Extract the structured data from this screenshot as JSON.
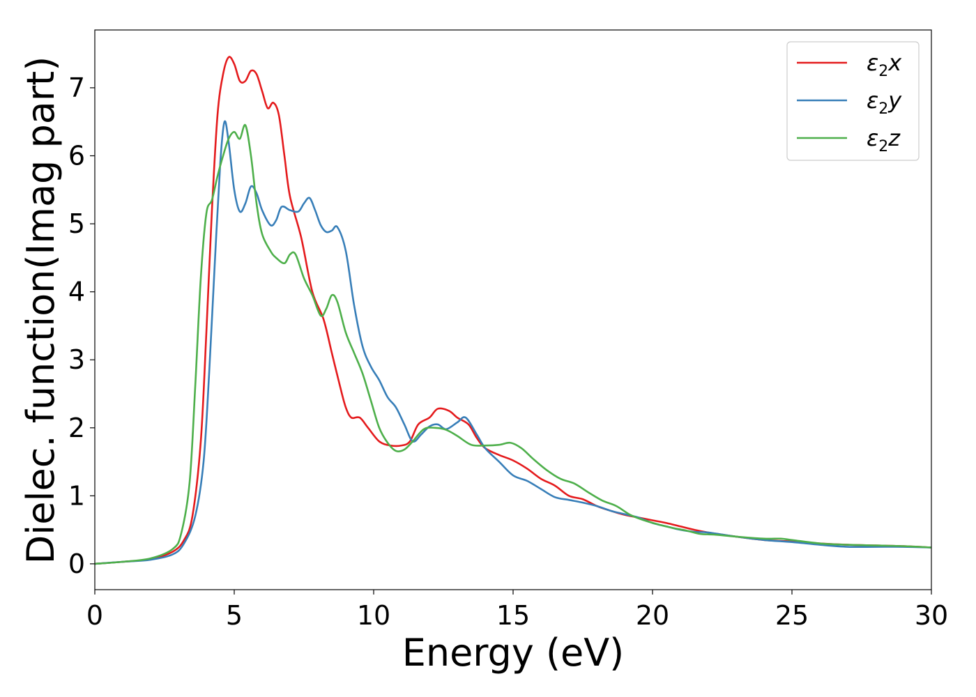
{
  "chart_data": {
    "type": "line",
    "title": "",
    "xlabel": "Energy (eV)",
    "ylabel": "Dielec. function(Imag part)",
    "xlim": [
      0,
      30
    ],
    "ylim": [
      -0.38,
      7.85
    ],
    "xticks": [
      0,
      5,
      10,
      15,
      20,
      25,
      30
    ],
    "yticks": [
      0,
      1,
      2,
      3,
      4,
      5,
      6,
      7
    ],
    "grid": false,
    "legend_position": "top-right",
    "series": [
      {
        "name": "ε2x",
        "legend": {
          "base": "ε",
          "sub": "2",
          "suffix": "x"
        },
        "color": "#e41a1c",
        "points": [
          [
            0,
            0
          ],
          [
            1,
            0.03
          ],
          [
            2,
            0.07
          ],
          [
            2.8,
            0.18
          ],
          [
            3.2,
            0.35
          ],
          [
            3.5,
            0.7
          ],
          [
            3.8,
            1.8
          ],
          [
            4.0,
            3.4
          ],
          [
            4.2,
            5.2
          ],
          [
            4.4,
            6.6
          ],
          [
            4.6,
            7.2
          ],
          [
            4.8,
            7.45
          ],
          [
            5.0,
            7.35
          ],
          [
            5.2,
            7.1
          ],
          [
            5.4,
            7.1
          ],
          [
            5.6,
            7.25
          ],
          [
            5.8,
            7.2
          ],
          [
            6.0,
            6.95
          ],
          [
            6.2,
            6.7
          ],
          [
            6.4,
            6.78
          ],
          [
            6.6,
            6.6
          ],
          [
            6.8,
            6.0
          ],
          [
            7.0,
            5.4
          ],
          [
            7.4,
            4.8
          ],
          [
            7.8,
            4.0
          ],
          [
            8.2,
            3.6
          ],
          [
            8.5,
            3.1
          ],
          [
            8.8,
            2.6
          ],
          [
            9.0,
            2.3
          ],
          [
            9.2,
            2.15
          ],
          [
            9.5,
            2.15
          ],
          [
            9.8,
            2.0
          ],
          [
            10.2,
            1.8
          ],
          [
            10.6,
            1.74
          ],
          [
            11.0,
            1.74
          ],
          [
            11.3,
            1.8
          ],
          [
            11.6,
            2.05
          ],
          [
            12.0,
            2.15
          ],
          [
            12.3,
            2.28
          ],
          [
            12.7,
            2.25
          ],
          [
            13.0,
            2.15
          ],
          [
            13.4,
            2.05
          ],
          [
            13.7,
            1.85
          ],
          [
            14.0,
            1.7
          ],
          [
            14.5,
            1.6
          ],
          [
            15.0,
            1.52
          ],
          [
            15.5,
            1.4
          ],
          [
            16.0,
            1.25
          ],
          [
            16.5,
            1.15
          ],
          [
            17.0,
            1.0
          ],
          [
            17.5,
            0.95
          ],
          [
            18.0,
            0.85
          ],
          [
            18.5,
            0.78
          ],
          [
            19.0,
            0.72
          ],
          [
            19.5,
            0.68
          ],
          [
            20.0,
            0.64
          ],
          [
            20.5,
            0.6
          ],
          [
            21.0,
            0.55
          ],
          [
            21.5,
            0.5
          ],
          [
            22.0,
            0.46
          ],
          [
            23.0,
            0.4
          ],
          [
            24.0,
            0.35
          ],
          [
            25.0,
            0.33
          ],
          [
            26.0,
            0.3
          ],
          [
            27.0,
            0.28
          ],
          [
            28.0,
            0.27
          ],
          [
            29.0,
            0.26
          ],
          [
            30.0,
            0.24
          ]
        ]
      },
      {
        "name": "ε2y",
        "legend": {
          "base": "ε",
          "sub": "2",
          "suffix": "y"
        },
        "color": "#377eb8",
        "points": [
          [
            0,
            0
          ],
          [
            1,
            0.03
          ],
          [
            2,
            0.06
          ],
          [
            2.8,
            0.14
          ],
          [
            3.2,
            0.3
          ],
          [
            3.6,
            0.7
          ],
          [
            3.9,
            1.5
          ],
          [
            4.1,
            2.8
          ],
          [
            4.3,
            4.4
          ],
          [
            4.5,
            5.9
          ],
          [
            4.65,
            6.5
          ],
          [
            4.8,
            6.2
          ],
          [
            5.0,
            5.5
          ],
          [
            5.2,
            5.18
          ],
          [
            5.4,
            5.3
          ],
          [
            5.6,
            5.55
          ],
          [
            5.8,
            5.45
          ],
          [
            6.0,
            5.2
          ],
          [
            6.3,
            4.98
          ],
          [
            6.5,
            5.05
          ],
          [
            6.7,
            5.25
          ],
          [
            7.0,
            5.2
          ],
          [
            7.3,
            5.18
          ],
          [
            7.5,
            5.3
          ],
          [
            7.7,
            5.38
          ],
          [
            7.9,
            5.2
          ],
          [
            8.1,
            4.98
          ],
          [
            8.3,
            4.88
          ],
          [
            8.5,
            4.9
          ],
          [
            8.7,
            4.95
          ],
          [
            9.0,
            4.6
          ],
          [
            9.3,
            3.8
          ],
          [
            9.6,
            3.2
          ],
          [
            9.9,
            2.9
          ],
          [
            10.2,
            2.7
          ],
          [
            10.5,
            2.45
          ],
          [
            10.8,
            2.3
          ],
          [
            11.1,
            2.05
          ],
          [
            11.4,
            1.8
          ],
          [
            11.7,
            1.9
          ],
          [
            12.0,
            2.02
          ],
          [
            12.3,
            2.05
          ],
          [
            12.6,
            1.98
          ],
          [
            13.0,
            2.08
          ],
          [
            13.3,
            2.15
          ],
          [
            13.7,
            1.9
          ],
          [
            14.0,
            1.7
          ],
          [
            14.5,
            1.5
          ],
          [
            15.0,
            1.3
          ],
          [
            15.5,
            1.22
          ],
          [
            16.0,
            1.1
          ],
          [
            16.5,
            0.98
          ],
          [
            17.0,
            0.94
          ],
          [
            17.5,
            0.9
          ],
          [
            18.0,
            0.85
          ],
          [
            18.5,
            0.78
          ],
          [
            19.0,
            0.73
          ],
          [
            19.5,
            0.68
          ],
          [
            20.0,
            0.6
          ],
          [
            20.5,
            0.55
          ],
          [
            21.0,
            0.5
          ],
          [
            21.5,
            0.47
          ],
          [
            22.0,
            0.46
          ],
          [
            23.0,
            0.4
          ],
          [
            24.0,
            0.35
          ],
          [
            25.0,
            0.32
          ],
          [
            26.0,
            0.28
          ],
          [
            27.0,
            0.25
          ],
          [
            28.0,
            0.25
          ],
          [
            29.0,
            0.25
          ],
          [
            30.0,
            0.24
          ]
        ]
      },
      {
        "name": "ε2z",
        "legend": {
          "base": "ε",
          "sub": "2",
          "suffix": "z"
        },
        "color": "#4daf4a",
        "points": [
          [
            0,
            0
          ],
          [
            1,
            0.03
          ],
          [
            2,
            0.08
          ],
          [
            2.8,
            0.22
          ],
          [
            3.1,
            0.45
          ],
          [
            3.4,
            1.2
          ],
          [
            3.6,
            2.6
          ],
          [
            3.8,
            4.2
          ],
          [
            4.0,
            5.15
          ],
          [
            4.2,
            5.35
          ],
          [
            4.4,
            5.7
          ],
          [
            4.6,
            6.0
          ],
          [
            4.8,
            6.25
          ],
          [
            5.0,
            6.35
          ],
          [
            5.2,
            6.25
          ],
          [
            5.4,
            6.45
          ],
          [
            5.6,
            6.0
          ],
          [
            5.8,
            5.3
          ],
          [
            6.0,
            4.85
          ],
          [
            6.3,
            4.6
          ],
          [
            6.5,
            4.5
          ],
          [
            6.8,
            4.42
          ],
          [
            7.0,
            4.55
          ],
          [
            7.2,
            4.55
          ],
          [
            7.5,
            4.2
          ],
          [
            7.8,
            3.95
          ],
          [
            8.1,
            3.65
          ],
          [
            8.3,
            3.75
          ],
          [
            8.5,
            3.95
          ],
          [
            8.7,
            3.85
          ],
          [
            9.0,
            3.4
          ],
          [
            9.3,
            3.1
          ],
          [
            9.6,
            2.8
          ],
          [
            9.9,
            2.4
          ],
          [
            10.2,
            2.0
          ],
          [
            10.5,
            1.78
          ],
          [
            10.8,
            1.66
          ],
          [
            11.1,
            1.68
          ],
          [
            11.4,
            1.8
          ],
          [
            11.8,
            1.98
          ],
          [
            12.2,
            2.0
          ],
          [
            12.6,
            1.97
          ],
          [
            13.0,
            1.88
          ],
          [
            13.5,
            1.75
          ],
          [
            14.0,
            1.74
          ],
          [
            14.5,
            1.75
          ],
          [
            14.9,
            1.78
          ],
          [
            15.3,
            1.7
          ],
          [
            15.7,
            1.55
          ],
          [
            16.2,
            1.38
          ],
          [
            16.7,
            1.25
          ],
          [
            17.2,
            1.18
          ],
          [
            17.7,
            1.05
          ],
          [
            18.2,
            0.93
          ],
          [
            18.7,
            0.85
          ],
          [
            19.2,
            0.72
          ],
          [
            19.7,
            0.64
          ],
          [
            20.2,
            0.58
          ],
          [
            20.7,
            0.53
          ],
          [
            21.2,
            0.49
          ],
          [
            21.7,
            0.44
          ],
          [
            22.2,
            0.43
          ],
          [
            23.0,
            0.4
          ],
          [
            24.0,
            0.37
          ],
          [
            24.6,
            0.37
          ],
          [
            25.0,
            0.35
          ],
          [
            26.0,
            0.3
          ],
          [
            27.0,
            0.28
          ],
          [
            28.0,
            0.27
          ],
          [
            29.0,
            0.26
          ],
          [
            30.0,
            0.24
          ]
        ]
      }
    ]
  }
}
